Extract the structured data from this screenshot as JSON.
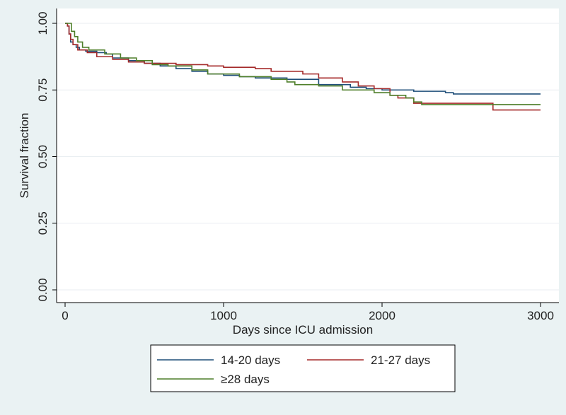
{
  "chart_data": {
    "type": "line",
    "step": true,
    "title": "",
    "xlabel": "Days since ICU admission",
    "ylabel": "Survival fraction",
    "xlim": [
      0,
      3000
    ],
    "ylim": [
      0,
      1
    ],
    "x_ticks": [
      0,
      1000,
      2000,
      3000
    ],
    "y_ticks": [
      0.0,
      0.25,
      0.5,
      0.75,
      1.0
    ],
    "x_tick_labels": [
      "0",
      "1000",
      "2000",
      "3000"
    ],
    "y_tick_labels": [
      "0.00",
      "0.25",
      "0.50",
      "0.75",
      "1.00"
    ],
    "grid": "horizontal",
    "legend_position": "bottom",
    "series": [
      {
        "name": "14-20 days",
        "color": "#1f4e79",
        "points": [
          [
            0,
            1.0
          ],
          [
            15,
            0.99
          ],
          [
            25,
            0.96
          ],
          [
            35,
            0.93
          ],
          [
            50,
            0.92
          ],
          [
            70,
            0.91
          ],
          [
            90,
            0.9
          ],
          [
            130,
            0.895
          ],
          [
            200,
            0.89
          ],
          [
            260,
            0.885
          ],
          [
            300,
            0.87
          ],
          [
            400,
            0.86
          ],
          [
            500,
            0.85
          ],
          [
            600,
            0.84
          ],
          [
            700,
            0.83
          ],
          [
            800,
            0.82
          ],
          [
            900,
            0.81
          ],
          [
            1000,
            0.805
          ],
          [
            1100,
            0.8
          ],
          [
            1200,
            0.795
          ],
          [
            1400,
            0.79
          ],
          [
            1600,
            0.77
          ],
          [
            1800,
            0.76
          ],
          [
            1900,
            0.755
          ],
          [
            2000,
            0.75
          ],
          [
            2200,
            0.745
          ],
          [
            2400,
            0.74
          ],
          [
            2450,
            0.735
          ],
          [
            3000,
            0.735
          ]
        ]
      },
      {
        "name": "21-27 days",
        "color": "#a52a2a",
        "points": [
          [
            0,
            1.0
          ],
          [
            15,
            0.99
          ],
          [
            25,
            0.96
          ],
          [
            35,
            0.94
          ],
          [
            50,
            0.92
          ],
          [
            80,
            0.9
          ],
          [
            140,
            0.89
          ],
          [
            200,
            0.875
          ],
          [
            300,
            0.865
          ],
          [
            400,
            0.855
          ],
          [
            500,
            0.85
          ],
          [
            700,
            0.845
          ],
          [
            900,
            0.84
          ],
          [
            1000,
            0.835
          ],
          [
            1200,
            0.83
          ],
          [
            1300,
            0.82
          ],
          [
            1500,
            0.81
          ],
          [
            1600,
            0.795
          ],
          [
            1750,
            0.78
          ],
          [
            1850,
            0.765
          ],
          [
            1950,
            0.755
          ],
          [
            2050,
            0.73
          ],
          [
            2100,
            0.72
          ],
          [
            2200,
            0.7
          ],
          [
            2700,
            0.7
          ],
          [
            2700,
            0.675
          ],
          [
            3000,
            0.675
          ]
        ]
      },
      {
        "name": "≥28 days",
        "color": "#4f7f2a",
        "points": [
          [
            0,
            1.0
          ],
          [
            30,
            1.0
          ],
          [
            40,
            0.97
          ],
          [
            60,
            0.95
          ],
          [
            80,
            0.93
          ],
          [
            110,
            0.91
          ],
          [
            150,
            0.9
          ],
          [
            250,
            0.885
          ],
          [
            350,
            0.87
          ],
          [
            450,
            0.86
          ],
          [
            550,
            0.845
          ],
          [
            650,
            0.84
          ],
          [
            800,
            0.825
          ],
          [
            900,
            0.81
          ],
          [
            1100,
            0.8
          ],
          [
            1300,
            0.79
          ],
          [
            1400,
            0.78
          ],
          [
            1450,
            0.77
          ],
          [
            1600,
            0.765
          ],
          [
            1750,
            0.75
          ],
          [
            1950,
            0.74
          ],
          [
            2050,
            0.73
          ],
          [
            2150,
            0.72
          ],
          [
            2200,
            0.705
          ],
          [
            2250,
            0.695
          ],
          [
            3000,
            0.695
          ]
        ]
      }
    ]
  }
}
